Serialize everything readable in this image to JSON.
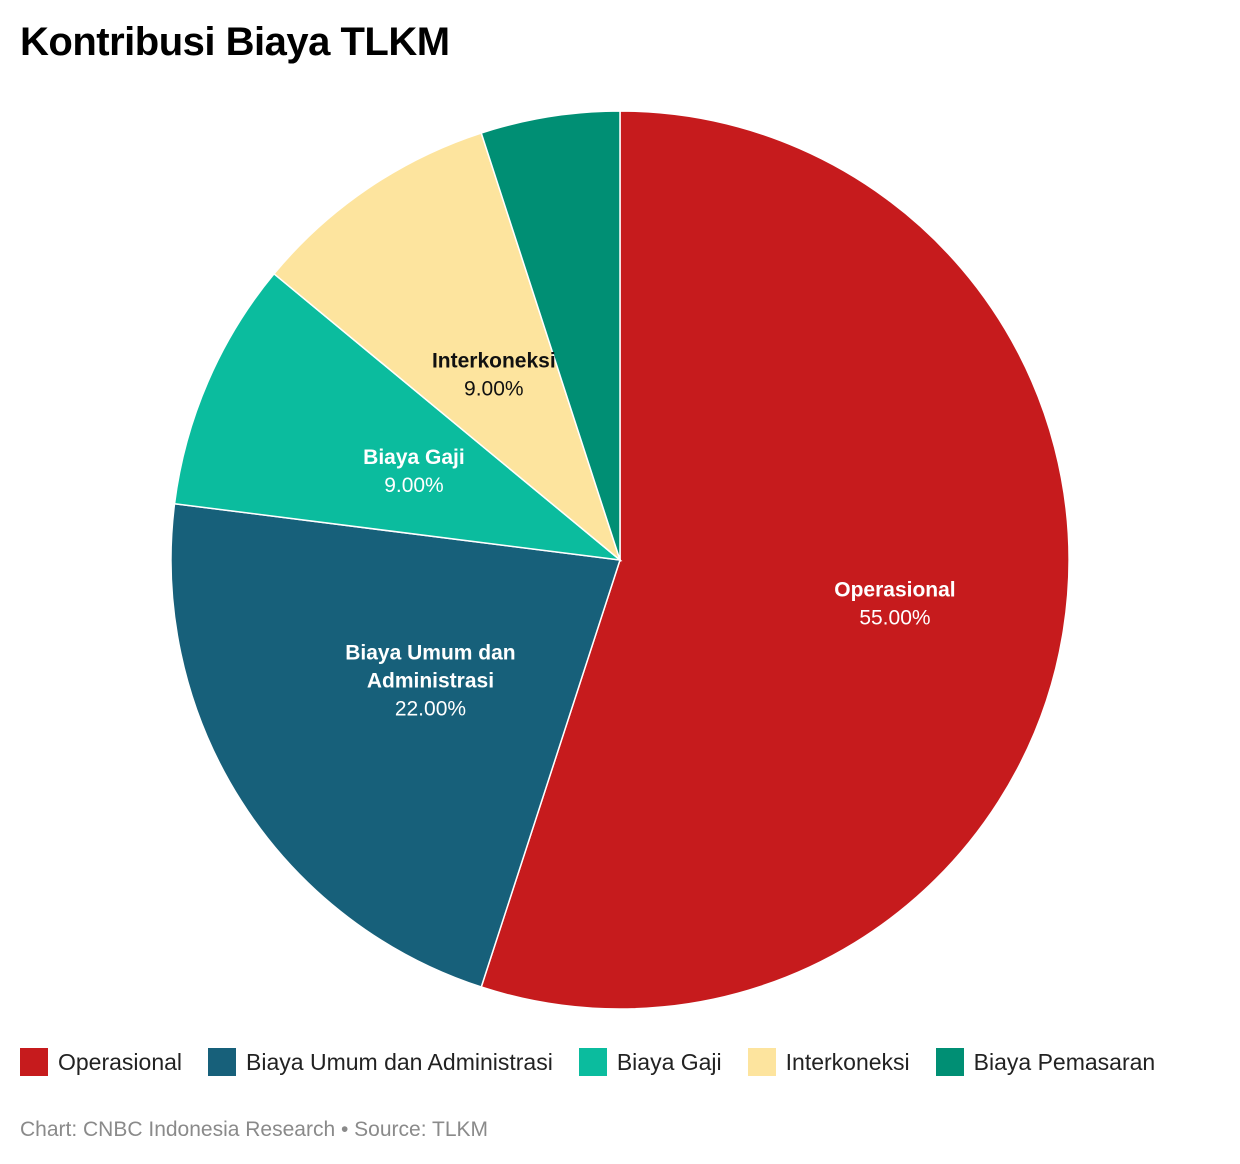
{
  "chart_data": {
    "type": "pie",
    "title": "Kontribusi Biaya TLKM",
    "slices": [
      {
        "name": "Operasional",
        "label_lines": [
          "Operasional"
        ],
        "value": 55.0,
        "value_label": "55.00%",
        "color": "#c61b1d",
        "label_color": "#ffffff",
        "show_label": true
      },
      {
        "name": "Biaya Umum dan Administrasi",
        "label_lines": [
          "Biaya Umum dan",
          "Administrasi"
        ],
        "value": 22.0,
        "value_label": "22.00%",
        "color": "#17607a",
        "label_color": "#ffffff",
        "show_label": true
      },
      {
        "name": "Biaya Gaji",
        "label_lines": [
          "Biaya Gaji"
        ],
        "value": 9.0,
        "value_label": "9.00%",
        "color": "#0bbc9e",
        "label_color": "#ffffff",
        "show_label": true
      },
      {
        "name": "Interkoneksi",
        "label_lines": [
          "Interkoneksi"
        ],
        "value": 9.0,
        "value_label": "9.00%",
        "color": "#fde49e",
        "label_color": "#111111",
        "show_label": true
      },
      {
        "name": "Biaya Pemasaran",
        "label_lines": [
          "Biaya Pemasaran"
        ],
        "value": 5.0,
        "value_label": "",
        "color": "#008f74",
        "label_color": "#ffffff",
        "show_label": false
      }
    ],
    "legend": {
      "placement": "bottom"
    }
  },
  "footer": {
    "credit": "Chart: CNBC Indonesia Research • Source: TLKM"
  }
}
